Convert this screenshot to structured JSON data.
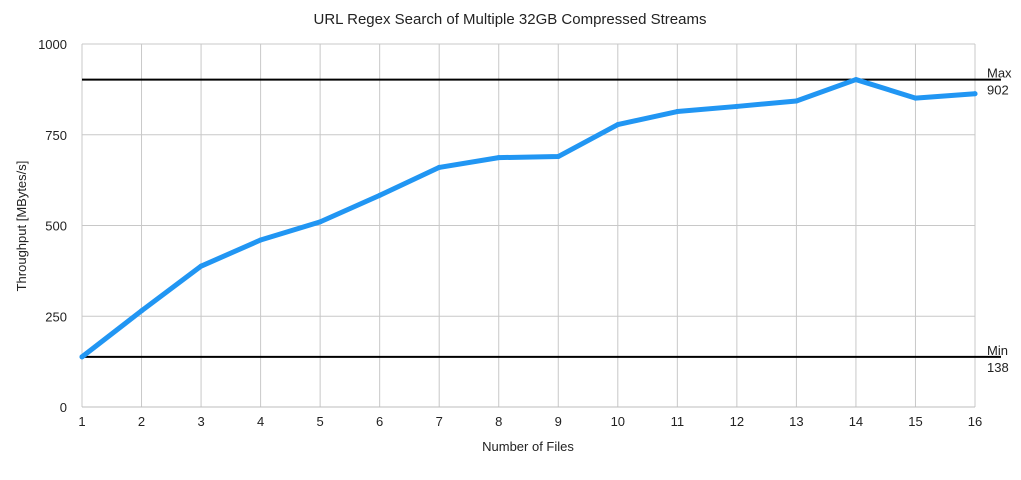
{
  "chart_data": {
    "type": "line",
    "title": "URL Regex Search of Multiple 32GB Compressed Streams",
    "xlabel": "Number of Files",
    "ylabel": "Throughput [MBytes/s]",
    "x": [
      1,
      2,
      3,
      4,
      5,
      6,
      7,
      8,
      9,
      10,
      11,
      12,
      13,
      14,
      15,
      16
    ],
    "x_tick_labels": [
      "1",
      "2",
      "3",
      "4",
      "5",
      "6",
      "7",
      "8",
      "9",
      "10",
      "11",
      "12",
      "13",
      "14",
      "15",
      "16"
    ],
    "y_tick_labels": [
      "0",
      "250",
      "500",
      "750",
      "1000"
    ],
    "y_ticks": [
      0,
      250,
      500,
      750,
      1000
    ],
    "ylim": [
      0,
      1000
    ],
    "xlim": [
      1,
      16
    ],
    "grid": true,
    "series": [
      {
        "values": [
          138,
          265,
          388,
          460,
          510,
          583,
          660,
          687,
          690,
          778,
          814,
          828,
          843,
          902,
          851,
          863
        ],
        "color": "#2196F3"
      }
    ],
    "reference_lines": [
      {
        "label_line1": "Max",
        "label_line2": "902",
        "value": 902,
        "color": "#000000"
      },
      {
        "label_line1": "Min",
        "label_line2": "138",
        "value": 138,
        "color": "#000000"
      }
    ]
  }
}
